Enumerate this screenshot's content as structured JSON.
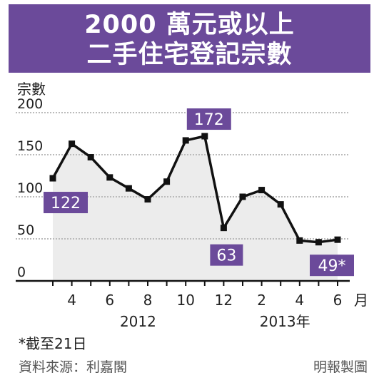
{
  "title": {
    "line1": "2000 萬元或以上",
    "line2": "二手住宅登記宗數"
  },
  "colors": {
    "accent": "#6b4a9a",
    "line": "#111111",
    "area": "#ececec",
    "grid": "#bbbbbb"
  },
  "chart_data": {
    "type": "line",
    "ylabel": "宗數",
    "xlabel_unit": "月",
    "ylim": [
      0,
      200
    ],
    "yticks": [
      0,
      50,
      100,
      150,
      200
    ],
    "grid": true,
    "legend": "none",
    "x_tick_labels": [
      "4",
      "6",
      "8",
      "10",
      "12",
      "2",
      "4",
      "6"
    ],
    "year_labels": [
      "2012",
      "2013年"
    ],
    "series": [
      {
        "x": [
          "2012-03",
          "2012-04",
          "2012-05",
          "2012-06",
          "2012-07",
          "2012-08",
          "2012-09",
          "2012-10",
          "2012-11",
          "2012-12",
          "2013-01",
          "2013-02",
          "2013-03",
          "2013-04",
          "2013-05",
          "2013-06"
        ],
        "values": [
          122,
          163,
          147,
          123,
          110,
          97,
          118,
          167,
          172,
          63,
          100,
          108,
          91,
          48,
          46,
          49
        ]
      }
    ],
    "annotations": [
      {
        "x": "2012-03",
        "text": "122"
      },
      {
        "x": "2012-11",
        "text": "172"
      },
      {
        "x": "2012-12",
        "text": "63"
      },
      {
        "x": "2013-06",
        "text": "49*"
      }
    ]
  },
  "footnote": "*截至21日",
  "source": "資料來源：利嘉閣",
  "credit": "明報製圖"
}
